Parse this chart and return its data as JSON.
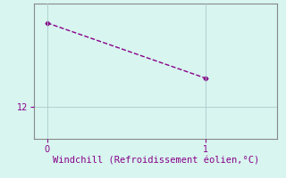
{
  "x": [
    0,
    1
  ],
  "y": [
    18.5,
    14.2
  ],
  "line_color": "#880088",
  "bg_color": "#d8f5f0",
  "grid_color": "#aacccc",
  "axis_color": "#888888",
  "xlabel": "Windchill (Refroidissement éolien,°C)",
  "xlabel_color": "#880088",
  "xlabel_fontsize": 7.5,
  "tick_label_color": "#880088",
  "tick_label_fontsize": 7,
  "xticks": [
    0,
    1
  ],
  "yticks": [
    12
  ],
  "xlim": [
    -0.08,
    1.45
  ],
  "ylim": [
    9.5,
    20.0
  ],
  "marker": "D",
  "markersize": 2.5,
  "linewidth": 1.0,
  "linestyle": "--"
}
